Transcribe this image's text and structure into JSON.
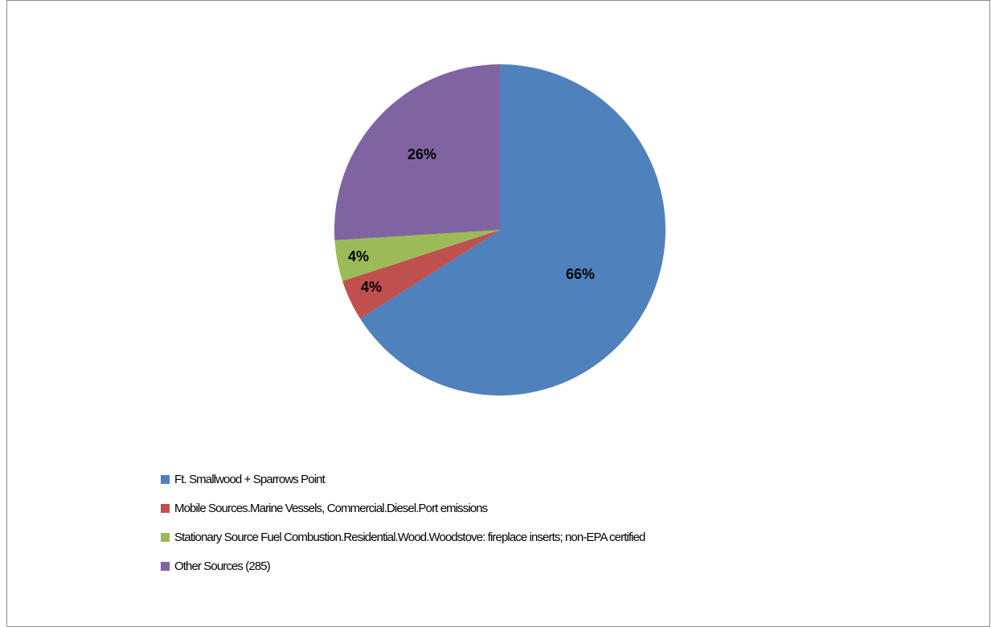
{
  "chart_data": {
    "type": "pie",
    "title": "",
    "slices": [
      {
        "label": "Ft. Smallwood + Sparrows Point",
        "value": 66,
        "display": "66%",
        "color": "#4f81bd"
      },
      {
        "label": "Mobile Sources.Marine Vessels, Commercial.Diesel.Port emissions",
        "value": 4,
        "display": "4%",
        "color": "#c0504d"
      },
      {
        "label": "Stationary Source Fuel Combustion.Residential.Wood.Woodstove: fireplace inserts; non-EPA certified",
        "value": 4,
        "display": "4%",
        "color": "#9bbb59"
      },
      {
        "label": "Other Sources (285)",
        "value": 26,
        "display": "26%",
        "color": "#8064a2"
      }
    ],
    "legend_position": "bottom-left"
  }
}
